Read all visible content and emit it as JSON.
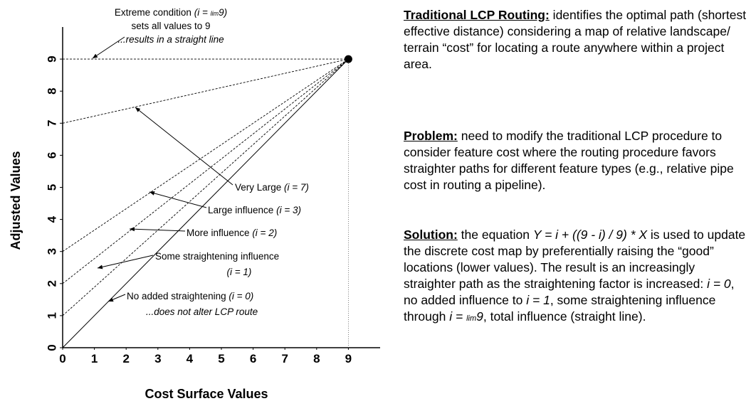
{
  "chart_data": {
    "type": "line",
    "xlabel": "Cost Surface Values",
    "ylabel": "Adjusted Values",
    "x": [
      0,
      9
    ],
    "series": [
      {
        "values": [
          0,
          9
        ],
        "style": "solid"
      },
      {
        "values": [
          1,
          9
        ],
        "style": "dashed"
      },
      {
        "values": [
          2,
          9
        ],
        "style": "dashed"
      },
      {
        "values": [
          3,
          9
        ],
        "style": "dashed"
      },
      {
        "values": [
          7,
          9
        ],
        "style": "dashed"
      },
      {
        "values": [
          9,
          9
        ],
        "style": "dashed"
      }
    ],
    "color": "#000000",
    "point": {
      "x": 9,
      "y": 9
    },
    "xlim": [
      0,
      10
    ],
    "ylim": [
      0,
      10
    ],
    "xticks": [
      0,
      1,
      2,
      3,
      4,
      5,
      6,
      7,
      8,
      9
    ],
    "yticks": [
      0,
      1,
      2,
      3,
      4,
      5,
      6,
      7,
      8,
      9
    ],
    "annotations": [
      {
        "lines": [
          [
            {
              "text": "Extreme condition "
            },
            {
              "text": "(i = ",
              "italic": true
            },
            {
              "text": "lim",
              "italic": true,
              "small": true
            },
            {
              "text": "9)",
              "italic": true
            }
          ],
          [
            {
              "text": "sets all values to 9"
            }
          ],
          [
            {
              "text": "...results in a straight line",
              "italic": true
            }
          ]
        ]
      },
      {
        "lines": [
          [
            {
              "text": "Very Large "
            },
            {
              "text": "(i = 7)",
              "italic": true
            }
          ]
        ]
      },
      {
        "lines": [
          [
            {
              "text": "Large influence "
            },
            {
              "text": "(i = 3)",
              "italic": true
            }
          ]
        ]
      },
      {
        "lines": [
          [
            {
              "text": "More influence "
            },
            {
              "text": "(i = 2)",
              "italic": true
            }
          ]
        ]
      },
      {
        "lines": [
          [
            {
              "text": "Some straightening influence"
            }
          ],
          [
            {
              "text": "(i = 1)",
              "italic": true
            }
          ]
        ]
      },
      {
        "lines": [
          [
            {
              "text": "No added straightening "
            },
            {
              "text": "(i = 0)",
              "italic": true
            }
          ],
          [
            {
              "text": "...does not alter LCP route",
              "italic": true
            }
          ]
        ]
      }
    ]
  },
  "text_panel": [
    {
      "heading": "Traditional LCP Routing:",
      "parts": [
        {
          "text": " identifies the optimal path (shortest effective distance) considering a map of relative landscape/ terrain “cost” for locating a route anywhere within a project area."
        }
      ]
    },
    {
      "heading": "Problem:",
      "parts": [
        {
          "text": " need to modify the traditional LCP procedure to consider feature cost where the routing procedure favors straighter paths for different feature types (e.g., relative pipe cost in routing a pipeline)."
        }
      ]
    },
    {
      "heading": "Solution:",
      "parts": [
        {
          "text": " the equation "
        },
        {
          "text": "Y = i + ((9 - i) / 9) * X",
          "italic": true
        },
        {
          "text": " is used to update the discrete cost map by preferentially raising the “good” locations (lower values).  The result is an increasingly straighter path as the straightening factor is increased: "
        },
        {
          "text": "i = 0",
          "italic": true
        },
        {
          "text": ", no added influence to "
        },
        {
          "text": "i = 1",
          "italic": true
        },
        {
          "text": ", some straightening influence through "
        },
        {
          "text": "i = ",
          "italic": true
        },
        {
          "text": "lim",
          "italic": true,
          "small": true
        },
        {
          "text": "9",
          "italic": true
        },
        {
          "text": ", total influence (straight line)."
        }
      ]
    }
  ]
}
